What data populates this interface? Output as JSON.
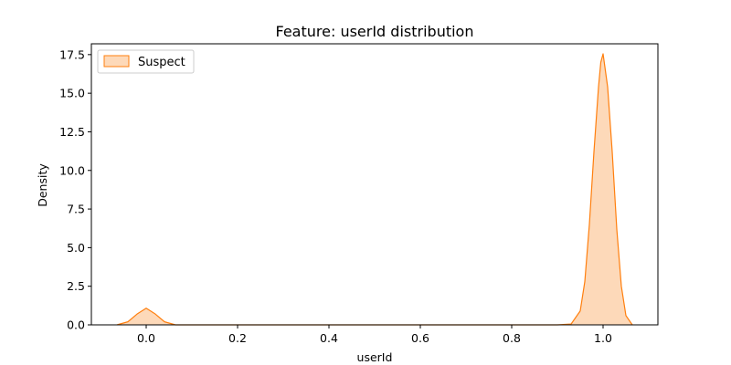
{
  "chart_data": {
    "type": "area",
    "title": "Feature: userId distribution",
    "xlabel": "userId",
    "ylabel": "Density",
    "xlim": [
      -0.12,
      1.12
    ],
    "ylim": [
      0,
      18.2
    ],
    "xticks": [
      0.0,
      0.2,
      0.4,
      0.6,
      0.8,
      1.0
    ],
    "xtick_labels": [
      "0.0",
      "0.2",
      "0.4",
      "0.6",
      "0.8",
      "1.0"
    ],
    "yticks": [
      0.0,
      2.5,
      5.0,
      7.5,
      10.0,
      12.5,
      15.0,
      17.5
    ],
    "ytick_labels": [
      "0.0",
      "2.5",
      "5.0",
      "7.5",
      "10.0",
      "12.5",
      "15.0",
      "17.5"
    ],
    "grid": false,
    "legend_position": "top-left",
    "series": [
      {
        "name": "Suspect",
        "line_color": "#ff7f0e",
        "fill_color": "#fdd9b9",
        "x": [
          -0.064,
          -0.04,
          -0.02,
          0.0,
          0.02,
          0.04,
          0.064,
          0.1,
          0.3,
          0.5,
          0.7,
          0.9,
          0.93,
          0.95,
          0.96,
          0.97,
          0.98,
          0.99,
          0.995,
          1.0,
          1.01,
          1.02,
          1.03,
          1.04,
          1.05,
          1.064
        ],
        "y": [
          0.0,
          0.2,
          0.7,
          1.08,
          0.7,
          0.2,
          0.0,
          0.0,
          0.0,
          0.0,
          0.0,
          0.0,
          0.05,
          0.9,
          2.8,
          6.5,
          11.2,
          15.4,
          17.0,
          17.55,
          15.4,
          11.2,
          6.2,
          2.5,
          0.6,
          0.0
        ]
      }
    ]
  }
}
